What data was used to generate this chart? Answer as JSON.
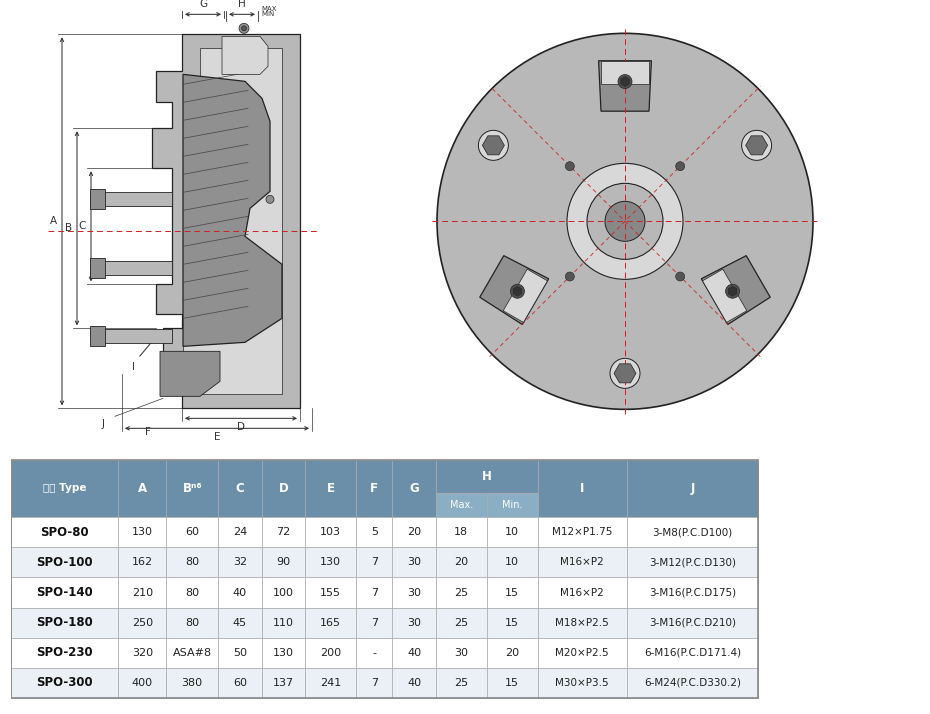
{
  "table_header_bg": "#6B8FA8",
  "table_subheader_bg": "#8AAFC5",
  "table_row_bg_odd": "#FFFFFF",
  "table_row_bg_even": "#EAF0F5",
  "table_border_color": "#AAAAAA",
  "header_text_color": "#FFFFFF",
  "row_text_color": "#222222",
  "title_text": "型号 Type",
  "rows": [
    [
      "SPO-80",
      "130",
      "60",
      "24",
      "72",
      "103",
      "5",
      "20",
      "18",
      "10",
      "M12×P1.75",
      "3-M8(P.C.D100)"
    ],
    [
      "SPO-100",
      "162",
      "80",
      "32",
      "90",
      "130",
      "7",
      "30",
      "20",
      "10",
      "M16×P2",
      "3-M12(P.C.D130)"
    ],
    [
      "SPO-140",
      "210",
      "80",
      "40",
      "100",
      "155",
      "7",
      "30",
      "25",
      "15",
      "M16×P2",
      "3-M16(P.C.D175)"
    ],
    [
      "SPO-180",
      "250",
      "80",
      "45",
      "110",
      "165",
      "7",
      "30",
      "25",
      "15",
      "M18×P2.5",
      "3-M16(P.C.D210)"
    ],
    [
      "SPO-230",
      "320",
      "ASA#8",
      "50",
      "130",
      "200",
      "-",
      "40",
      "30",
      "20",
      "M20×P2.5",
      "6-M16(P.C.D171.4)"
    ],
    [
      "SPO-300",
      "400",
      "380",
      "60",
      "137",
      "241",
      "7",
      "40",
      "25",
      "15",
      "M30×P3.5",
      "6-M24(P.C.D330.2)"
    ]
  ],
  "bg_color": "#FFFFFF"
}
